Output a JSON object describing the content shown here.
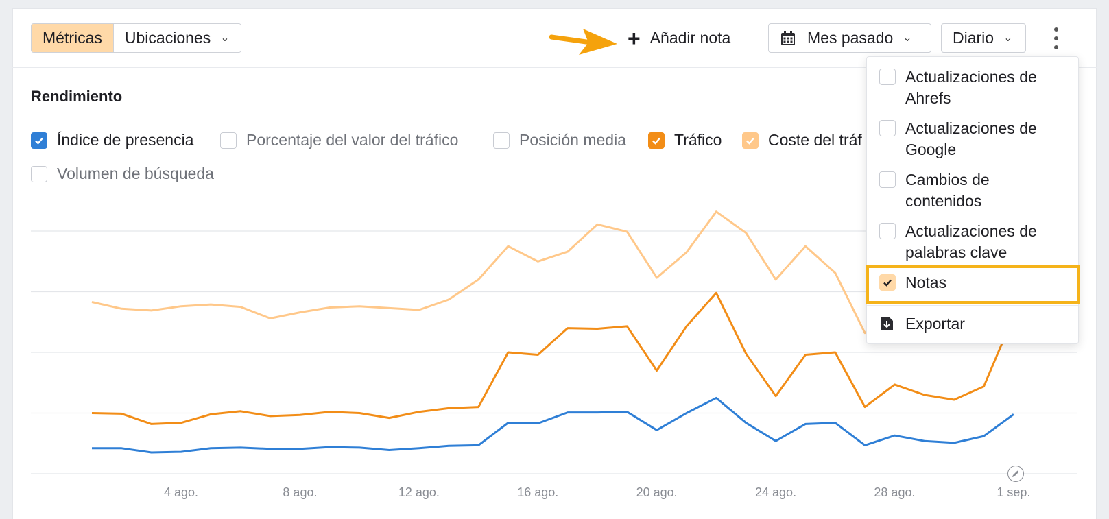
{
  "toolbar": {
    "tabs": [
      {
        "label": "Métricas",
        "active": true
      },
      {
        "label": "Ubicaciones",
        "active": false
      }
    ],
    "add_note": "Añadir nota",
    "date_range": "Mes pasado",
    "granularity": "Diario"
  },
  "section": {
    "title": "Rendimiento"
  },
  "metrics": [
    {
      "label": "Índice de presencia",
      "checked": true,
      "color": "#2f7fd6"
    },
    {
      "label": "Porcentaje del valor del tráfico",
      "checked": false
    },
    {
      "label": "Posición media",
      "checked": false
    },
    {
      "label": "Tráfico",
      "checked": true,
      "color": "#f28d17"
    },
    {
      "label": "Coste del tráf",
      "checked": true,
      "color": "#ffc88a"
    },
    {
      "label": "Volumen de búsqueda",
      "checked": false
    }
  ],
  "menu": {
    "items": [
      {
        "label_line1": "Actualizaciones de",
        "label_line2": "Ahrefs",
        "checked": false
      },
      {
        "label_line1": "Actualizaciones de",
        "label_line2": "Google",
        "checked": false
      },
      {
        "label_line1": "Cambios de",
        "label_line2": "contenidos",
        "checked": false
      },
      {
        "label_line1": "Actualizaciones de",
        "label_line2": "palabras clave",
        "checked": false
      },
      {
        "label_line1": "Notas",
        "label_line2": "",
        "checked": true
      }
    ],
    "export": "Exportar"
  },
  "chart_data": {
    "type": "line",
    "x": [
      "1 ago.",
      "2 ago.",
      "3 ago.",
      "4 ago.",
      "5 ago.",
      "6 ago.",
      "7 ago.",
      "8 ago.",
      "9 ago.",
      "10 ago.",
      "11 ago.",
      "12 ago.",
      "13 ago.",
      "14 ago.",
      "15 ago.",
      "16 ago.",
      "17 ago.",
      "18 ago.",
      "19 ago.",
      "20 ago.",
      "21 ago.",
      "22 ago.",
      "23 ago.",
      "24 ago.",
      "25 ago.",
      "26 ago.",
      "27 ago.",
      "28 ago.",
      "29 ago.",
      "30 ago.",
      "31 ago.",
      "1 sep."
    ],
    "xticks": [
      "4 ago.",
      "8 ago.",
      "12 ago.",
      "16 ago.",
      "20 ago.",
      "24 ago.",
      "28 ago.",
      "1 sep."
    ],
    "ylim": [
      0,
      4
    ],
    "grid": true,
    "series": [
      {
        "color": "#ffc88a",
        "values": [
          2.83,
          2.72,
          2.69,
          2.76,
          2.79,
          2.75,
          2.56,
          2.66,
          2.74,
          2.76,
          2.73,
          2.7,
          2.87,
          3.2,
          3.75,
          3.5,
          3.66,
          4.11,
          3.99,
          3.23,
          3.65,
          4.32,
          3.97,
          3.2,
          3.75,
          3.31,
          2.32,
          2.7,
          2.58,
          2.46,
          2.6,
          3.35
        ]
      },
      {
        "color": "#f28d17",
        "values": [
          1.0,
          0.99,
          0.82,
          0.84,
          0.98,
          1.03,
          0.95,
          0.97,
          1.02,
          1.0,
          0.92,
          1.02,
          1.08,
          1.1,
          2.0,
          1.96,
          2.4,
          2.39,
          2.43,
          1.7,
          2.43,
          2.98,
          1.98,
          1.28,
          1.96,
          2.0,
          1.1,
          1.47,
          1.3,
          1.22,
          1.44,
          2.6
        ]
      },
      {
        "color": "#2f7fd6",
        "values": [
          0.42,
          0.42,
          0.35,
          0.36,
          0.42,
          0.43,
          0.41,
          0.41,
          0.44,
          0.43,
          0.39,
          0.42,
          0.46,
          0.47,
          0.84,
          0.83,
          1.01,
          1.01,
          1.02,
          0.72,
          1.0,
          1.25,
          0.84,
          0.54,
          0.82,
          0.84,
          0.47,
          0.63,
          0.54,
          0.51,
          0.62,
          0.98
        ]
      }
    ]
  }
}
